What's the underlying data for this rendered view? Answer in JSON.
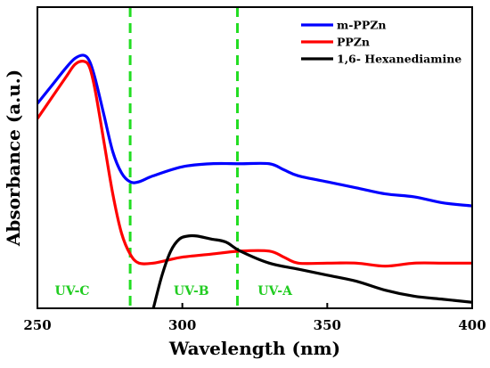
{
  "chart_data": {
    "type": "line",
    "xlabel": "Wavelength (nm)",
    "ylabel": "Absorbance (a.u.)",
    "xlim": [
      250,
      400
    ],
    "ylim": [
      0,
      1
    ],
    "x_ticks": [
      250,
      300,
      350,
      400
    ],
    "y_ticks_visible": false,
    "grid": false,
    "legend_position": "top-right",
    "colors": {
      "uv_divider": "#22dd22",
      "uv_label": "#22cc22",
      "axis": "#000000"
    },
    "series": [
      {
        "name": "m-PPZn",
        "color": "#0000ff",
        "x": [
          250,
          255,
          260,
          263,
          266,
          268,
          270,
          273,
          276,
          279,
          282,
          285,
          290,
          300,
          310,
          320,
          330,
          335,
          340,
          350,
          360,
          370,
          380,
          390,
          400
        ],
        "y": [
          0.68,
          0.74,
          0.8,
          0.83,
          0.84,
          0.82,
          0.76,
          0.64,
          0.52,
          0.45,
          0.42,
          0.42,
          0.44,
          0.47,
          0.48,
          0.48,
          0.48,
          0.46,
          0.44,
          0.42,
          0.4,
          0.38,
          0.37,
          0.35,
          0.34
        ]
      },
      {
        "name": "PPZn",
        "color": "#ff0000",
        "x": [
          250,
          255,
          260,
          263,
          266,
          268,
          270,
          273,
          276,
          279,
          282,
          285,
          290,
          295,
          300,
          310,
          320,
          330,
          335,
          340,
          350,
          360,
          370,
          380,
          390,
          400
        ],
        "y": [
          0.63,
          0.7,
          0.77,
          0.81,
          0.82,
          0.8,
          0.72,
          0.55,
          0.38,
          0.25,
          0.18,
          0.15,
          0.15,
          0.16,
          0.17,
          0.18,
          0.19,
          0.19,
          0.17,
          0.15,
          0.15,
          0.15,
          0.14,
          0.15,
          0.15,
          0.15
        ]
      },
      {
        "name": "1,6- Hexanediamine",
        "color": "#000000",
        "x": [
          290,
          293,
          296,
          299,
          302,
          305,
          310,
          315,
          320,
          330,
          340,
          350,
          360,
          370,
          380,
          390,
          400
        ],
        "y": [
          0.0,
          0.11,
          0.19,
          0.23,
          0.24,
          0.24,
          0.23,
          0.22,
          0.19,
          0.15,
          0.13,
          0.11,
          0.09,
          0.06,
          0.04,
          0.03,
          0.02
        ]
      }
    ],
    "vertical_lines": [
      {
        "x": 282,
        "style": "dashed",
        "color": "#22dd22"
      },
      {
        "x": 319,
        "style": "dashed",
        "color": "#22dd22"
      }
    ],
    "annotations": [
      {
        "text": "UV-C",
        "x": 256,
        "y": 0.045
      },
      {
        "text": "UV-B",
        "x": 297,
        "y": 0.045
      },
      {
        "text": "UV-A",
        "x": 326,
        "y": 0.045
      }
    ]
  }
}
